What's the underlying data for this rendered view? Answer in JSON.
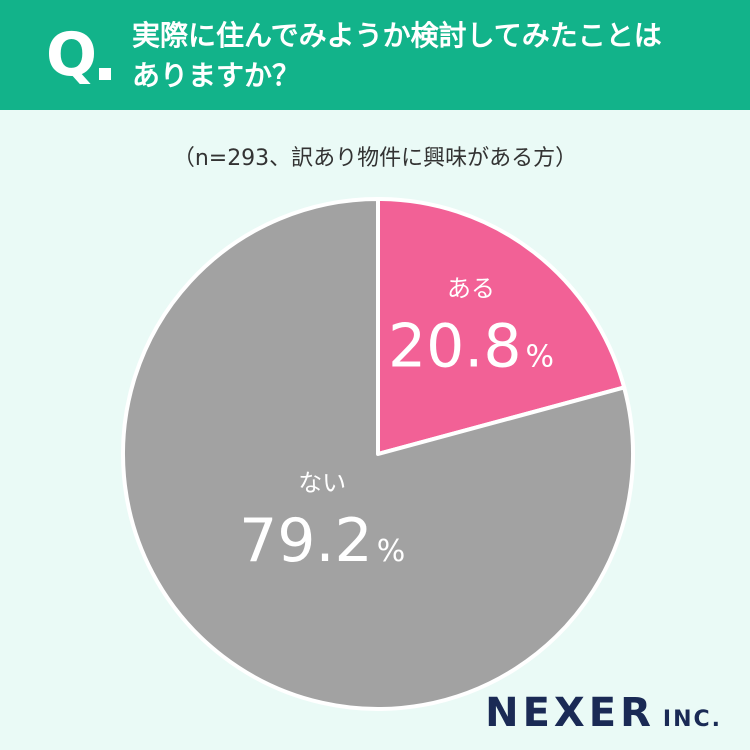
{
  "header": {
    "q_label": "Q",
    "question_line1": "実際に住んでみようか検討してみたことは",
    "question_line2": "ありますか？"
  },
  "subtitle": "（n=293、訳あり物件に興味がある方）",
  "brand": {
    "name": "NEXER",
    "suffix": "INC."
  },
  "colors": {
    "header": "#12b38a",
    "background": "#eafaf6",
    "aru": "#f26196",
    "nai": "#a2a2a2"
  },
  "chart_data": {
    "type": "pie",
    "slices": [
      {
        "label": "ある",
        "value": 20.8,
        "value_text": "20.8",
        "unit": "%",
        "color": "#f26196"
      },
      {
        "label": "ない",
        "value": 79.2,
        "value_text": "79.2",
        "unit": "%",
        "color": "#a2a2a2"
      }
    ]
  }
}
